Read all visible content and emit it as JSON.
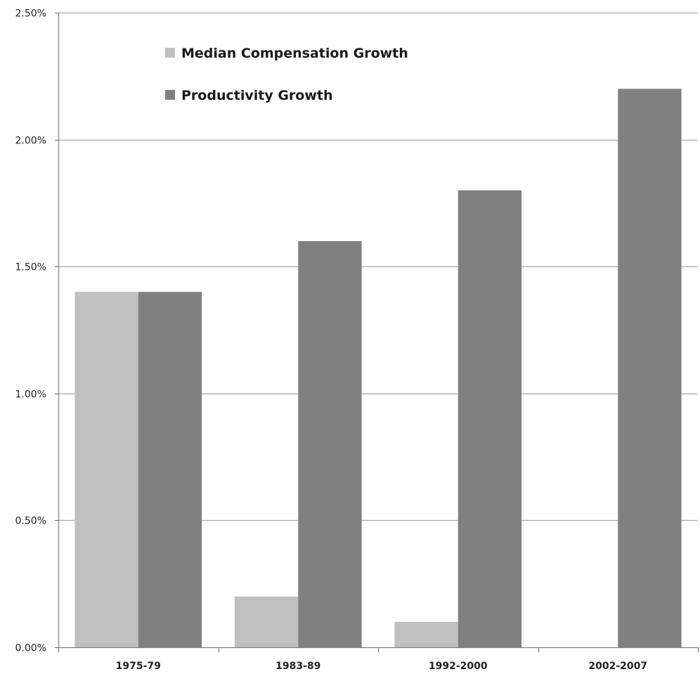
{
  "chart_data": {
    "type": "bar",
    "title": "",
    "xlabel": "",
    "ylabel": "",
    "categories": [
      "1975-79",
      "1983-89",
      "1992-2000",
      "2002-2007"
    ],
    "series": [
      {
        "name": "Median Compensation Growth",
        "values": [
          1.4,
          0.2,
          0.1,
          0.0
        ],
        "color": "#c0c0c0"
      },
      {
        "name": "Productivity Growth",
        "values": [
          1.4,
          1.6,
          1.8,
          2.2
        ],
        "color": "#808080"
      }
    ],
    "ylim": [
      0,
      2.5
    ],
    "yticks": [
      0,
      0.5,
      1.0,
      1.5,
      2.0,
      2.5
    ],
    "ytick_labels": [
      "0.00%",
      "0.50%",
      "1.00%",
      "1.50%",
      "2.00%",
      "2.50%"
    ],
    "grid": true,
    "legend_position": "top-left"
  }
}
